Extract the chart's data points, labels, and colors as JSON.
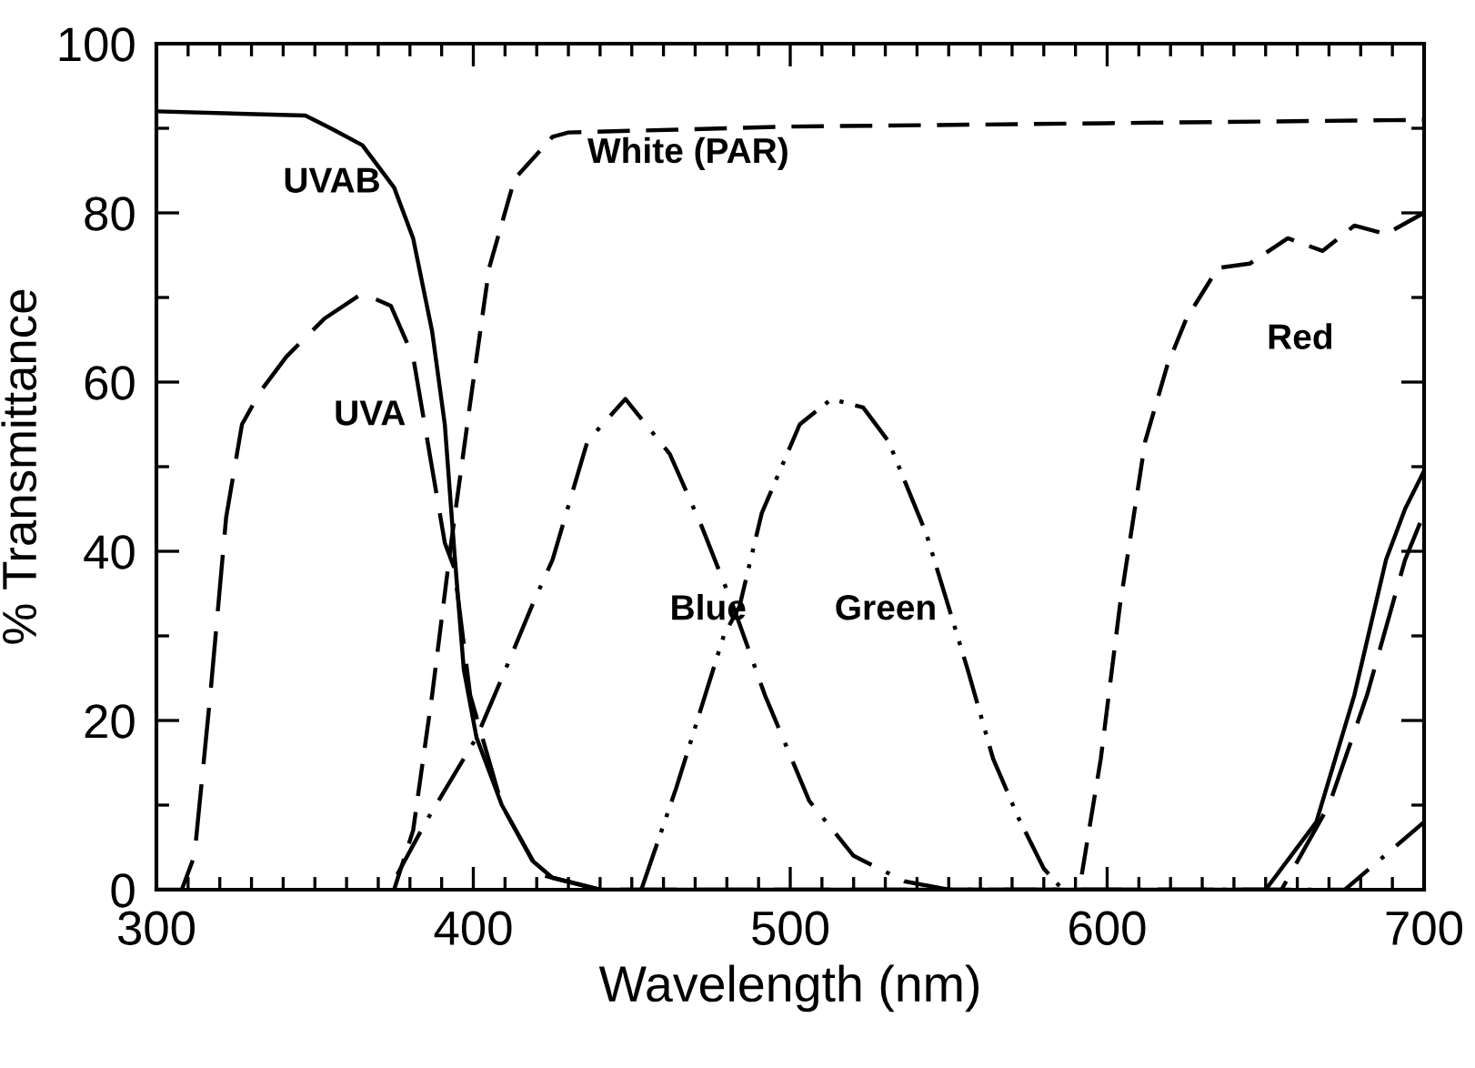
{
  "chart_data": {
    "type": "line",
    "xlabel": "Wavelength (nm)",
    "ylabel": "% Transmittance",
    "xlim": [
      300,
      700
    ],
    "ylim": [
      0,
      100
    ],
    "xticks": [
      300,
      400,
      500,
      600,
      700
    ],
    "yticks": [
      0,
      20,
      40,
      60,
      80,
      100
    ],
    "grid": false,
    "legend": false,
    "marker": "none",
    "series": [
      {
        "name": "UVAB",
        "color": "#000000",
        "line_style": "solid",
        "x": [
          300,
          347,
          355,
          365,
          375,
          381,
          387,
          391,
          394,
          397,
          401,
          409,
          419,
          425,
          440,
          650,
          666,
          678,
          688,
          694,
          700
        ],
        "values": [
          92,
          91.5,
          90,
          88,
          83,
          77,
          66,
          55,
          40,
          26,
          18,
          10,
          3.3,
          1.4,
          0,
          0,
          8,
          23,
          39,
          45,
          49.5
        ]
      },
      {
        "name": "UVA",
        "color": "#000000",
        "line_style": "longdash",
        "x": [
          300,
          308,
          312,
          317,
          322,
          327,
          333,
          341,
          353,
          365,
          374,
          381,
          386,
          391,
          394,
          399,
          409,
          421,
          440,
          655,
          670,
          682,
          694,
          700
        ],
        "values": [
          0,
          0,
          4,
          23,
          44,
          55,
          59,
          63,
          67.5,
          70.5,
          69,
          63,
          52,
          41,
          38,
          23,
          10,
          1.8,
          0,
          0,
          10,
          23,
          39,
          44.5
        ]
      },
      {
        "name": "White (PAR)",
        "color": "#000000",
        "line_style": "dashed",
        "x": [
          375,
          381,
          387,
          393,
          399,
          405,
          413,
          425,
          430,
          500,
          600,
          700
        ],
        "values": [
          0,
          7,
          23,
          41,
          57.5,
          73.5,
          84,
          89,
          89.5,
          90.2,
          90.6,
          91
        ]
      },
      {
        "name": "Blue",
        "color": "#000000",
        "line_style": "dashdot",
        "x": [
          376,
          385,
          397,
          401,
          409,
          419,
          425,
          436,
          448,
          462,
          472,
          482,
          492,
          506,
          520,
          536,
          550,
          675,
          700
        ],
        "values": [
          1.8,
          8,
          15.5,
          18,
          25,
          34,
          39,
          53,
          58,
          51.5,
          43,
          33.5,
          23,
          10.5,
          4,
          1,
          0,
          0,
          8
        ]
      },
      {
        "name": "Green",
        "color": "#000000",
        "line_style": "dashdotdot",
        "x": [
          453,
          464,
          479,
          484,
          491,
          503,
          513,
          523,
          531,
          543,
          556,
          564,
          572,
          580,
          586
        ],
        "values": [
          0,
          12,
          30,
          33.5,
          44.5,
          55,
          58,
          57,
          53,
          42,
          26,
          15.5,
          8.5,
          2.5,
          0
        ]
      },
      {
        "name": "Red",
        "color": "#000000",
        "line_style": "dashed",
        "x": [
          592,
          598,
          604,
          612,
          619,
          625,
          635,
          645,
          657,
          668,
          678,
          688,
          700
        ],
        "values": [
          1.8,
          15.5,
          33.5,
          53,
          62,
          67.5,
          73.5,
          74,
          77,
          75.5,
          78.5,
          77.5,
          80
        ]
      }
    ]
  }
}
